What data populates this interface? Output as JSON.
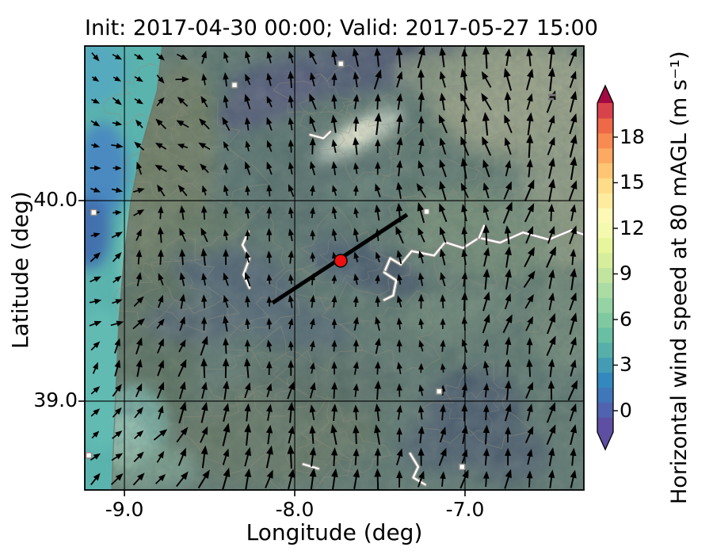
{
  "title": "Init: 2017-04-30 00:00; Valid: 2017-05-27 15:00",
  "axes": {
    "xlabel": "Longitude (deg)",
    "ylabel": "Latitude (deg)",
    "xticks": [
      {
        "value": -9.0,
        "label": "-9.0"
      },
      {
        "value": -8.0,
        "label": "-8.0"
      },
      {
        "value": -7.0,
        "label": "-7.0"
      }
    ],
    "yticks": [
      {
        "value": 40.0,
        "label": "40.0"
      },
      {
        "value": 39.0,
        "label": "39.0"
      }
    ],
    "xlim": [
      -9.233,
      -6.302
    ],
    "ylim": [
      38.557,
      40.771
    ],
    "grid": true
  },
  "colorbar": {
    "label": "Horizontal wind speed at 80 mAGL (m s⁻¹)",
    "ticks": [
      {
        "value": 0,
        "label": "0"
      },
      {
        "value": 3,
        "label": "3"
      },
      {
        "value": 6,
        "label": "6"
      },
      {
        "value": 9,
        "label": "9"
      },
      {
        "value": 12,
        "label": "12"
      },
      {
        "value": 15,
        "label": "15"
      },
      {
        "value": 18,
        "label": "18"
      }
    ],
    "segments": [
      "#5e4fa2",
      "#4f63ae",
      "#4077b8",
      "#3389bd",
      "#449cb4",
      "#57afa9",
      "#69bfa3",
      "#7fc9a0",
      "#95d3a4",
      "#abdca3",
      "#c1e59f",
      "#d6ee9b",
      "#e7f59c",
      "#f3faad",
      "#fdf8b6",
      "#feeb9e",
      "#fedc88",
      "#fdc574",
      "#fca962",
      "#f88b51",
      "#ee6947",
      "#d8434b"
    ],
    "over_color": "#a30a43",
    "under_color": "#5e4fa2"
  },
  "chart_data": {
    "type": "heatmap",
    "title": "Init: 2017-04-30 00:00; Valid: 2017-05-27 15:00",
    "xlabel": "Longitude (deg)",
    "ylabel": "Latitude (deg)",
    "colorbar_label": "Horizontal wind speed at 80 mAGL (m s⁻¹)",
    "colorbar_tick_values": [
      0,
      3,
      6,
      9,
      12,
      15,
      18
    ],
    "value_range_shown": [
      0,
      20
    ],
    "xlim": [
      -9.233,
      -6.302
    ],
    "ylim": [
      38.557,
      40.771
    ],
    "overlays": {
      "station_marker": {
        "lon": -7.73,
        "lat": 39.7,
        "color": "#ee1010"
      },
      "transect_line": {
        "from": {
          "lon": -8.13,
          "lat": 39.49
        },
        "to": {
          "lon": -7.34,
          "lat": 39.93
        },
        "color": "#000000"
      }
    },
    "wind_vectors": {
      "grid_nx": 23,
      "grid_ny": 20,
      "anchors": [
        [
          0.05,
          0.05,
          130,
          13
        ],
        [
          0.04,
          0.3,
          100,
          13
        ],
        [
          0.04,
          0.6,
          80,
          13
        ],
        [
          0.05,
          0.88,
          60,
          15
        ],
        [
          0.17,
          0.25,
          300,
          17
        ],
        [
          0.1,
          0.68,
          20,
          20
        ],
        [
          0.2,
          0.5,
          345,
          20
        ],
        [
          0.22,
          0.78,
          10,
          26
        ],
        [
          0.1,
          0.97,
          45,
          18
        ],
        [
          0.42,
          0.1,
          345,
          19
        ],
        [
          0.3,
          0.35,
          350,
          15
        ],
        [
          0.55,
          0.32,
          355,
          16
        ],
        [
          0.52,
          0.52,
          355,
          13
        ],
        [
          0.42,
          0.62,
          0,
          15
        ],
        [
          0.62,
          0.14,
          15,
          25
        ],
        [
          0.78,
          0.14,
          340,
          26
        ],
        [
          0.99,
          0.1,
          20,
          27
        ],
        [
          0.7,
          0.36,
          335,
          24
        ],
        [
          0.93,
          0.33,
          15,
          26
        ],
        [
          0.88,
          0.56,
          20,
          25
        ],
        [
          0.7,
          0.72,
          350,
          14
        ],
        [
          0.6,
          0.78,
          5,
          21
        ],
        [
          0.5,
          0.93,
          0,
          26
        ],
        [
          0.3,
          0.92,
          18,
          26
        ],
        [
          0.75,
          0.93,
          10,
          24
        ],
        [
          0.95,
          0.82,
          12,
          24
        ]
      ]
    },
    "base_color": "#547064",
    "field_patches": [
      [
        0.3,
        0.22,
        120,
        90,
        0,
        "#4e6b62",
        14,
        0.9
      ],
      [
        0.48,
        0.33,
        90,
        55,
        -15,
        "#49655e",
        12,
        0.85
      ],
      [
        0.17,
        0.3,
        55,
        150,
        8,
        "#6a7752",
        10,
        0.9
      ],
      [
        0.14,
        0.7,
        55,
        130,
        4,
        "#51684f",
        12,
        0.85
      ],
      [
        0.52,
        0.055,
        150,
        32,
        -8,
        "#41486a",
        10,
        0.9
      ],
      [
        0.37,
        0.12,
        70,
        28,
        -25,
        "#4a4c72",
        8,
        0.8
      ],
      [
        0.63,
        0.03,
        80,
        22,
        -5,
        "#3d4565",
        8,
        0.85
      ],
      [
        0.55,
        0.2,
        62,
        20,
        -28,
        "#cfdcc8",
        7,
        0.9
      ],
      [
        0.548,
        0.197,
        30,
        11,
        -28,
        "#f4f3d6",
        4,
        0.95
      ],
      [
        0.88,
        0.12,
        115,
        75,
        0,
        "#a2a782",
        14,
        0.95
      ],
      [
        0.97,
        0.33,
        62,
        100,
        0,
        "#96a07e",
        14,
        0.9
      ],
      [
        0.72,
        0.06,
        65,
        30,
        0,
        "#8e9b79",
        10,
        0.85
      ],
      [
        0.8,
        0.42,
        100,
        55,
        10,
        "#73906e",
        14,
        0.8
      ],
      [
        0.54,
        0.49,
        62,
        28,
        15,
        "#3b4f63",
        7,
        0.9
      ],
      [
        0.615,
        0.525,
        38,
        22,
        10,
        "#35475b",
        5,
        0.9
      ],
      [
        0.3,
        0.52,
        85,
        40,
        20,
        "#43566a",
        10,
        0.85
      ],
      [
        0.42,
        0.63,
        75,
        30,
        10,
        "#455a6b",
        9,
        0.8
      ],
      [
        0.22,
        0.62,
        62,
        28,
        0,
        "#47586a",
        9,
        0.8
      ],
      [
        0.78,
        0.82,
        62,
        52,
        0,
        "#38495e",
        10,
        0.9
      ],
      [
        0.85,
        0.92,
        50,
        35,
        0,
        "#3b4c61",
        9,
        0.85
      ],
      [
        0.72,
        0.9,
        55,
        35,
        0,
        "#3e4f63",
        9,
        0.8
      ],
      [
        0.38,
        0.87,
        125,
        65,
        -5,
        "#5d7055",
        14,
        0.85
      ],
      [
        0.75,
        0.6,
        75,
        28,
        -10,
        "#6b886f",
        10,
        0.7
      ],
      [
        0.55,
        0.33,
        50,
        22,
        -25,
        "#5d7d6d",
        8,
        0.7
      ],
      [
        0.085,
        0.89,
        26,
        34,
        0,
        "#ecefc1",
        4,
        0.95
      ],
      [
        0.095,
        0.855,
        45,
        52,
        0,
        "#7cc2b2",
        7,
        0.8
      ],
      [
        0.13,
        0.95,
        60,
        30,
        0,
        "#7fae92",
        9,
        0.7
      ],
      [
        0.96,
        0.62,
        45,
        60,
        0,
        "#6f8a6e",
        10,
        0.7
      ],
      [
        0.48,
        0.75,
        90,
        40,
        5,
        "#4c6257",
        10,
        0.7
      ],
      [
        0.24,
        0.42,
        55,
        30,
        -20,
        "#5b7257",
        8,
        0.7
      ]
    ],
    "ocean_color": "#5bb3ae",
    "ocean_patches": [
      [
        0.02,
        0.06,
        40,
        40,
        "#55a9c0"
      ],
      [
        0.035,
        0.28,
        32,
        60,
        "#4a86c2"
      ],
      [
        0.01,
        0.42,
        26,
        46,
        "#3f6aae"
      ],
      [
        0.03,
        0.75,
        40,
        90,
        "#63bcb4"
      ],
      [
        0.1,
        0.52,
        15,
        90,
        "#8ed0bd"
      ]
    ],
    "coastline": [
      [
        0.155,
        0
      ],
      [
        0.145,
        0.1
      ],
      [
        0.115,
        0.22
      ],
      [
        0.092,
        0.35
      ],
      [
        0.078,
        0.48
      ],
      [
        0.068,
        0.62
      ],
      [
        0.062,
        0.78
      ],
      [
        0.054,
        1.0
      ]
    ],
    "contour_seeds": [
      [
        0.52,
        0.49,
        60
      ],
      [
        0.3,
        0.52,
        75
      ],
      [
        0.55,
        0.2,
        55
      ],
      [
        0.88,
        0.13,
        80
      ],
      [
        0.75,
        0.42,
        70
      ],
      [
        0.42,
        0.63,
        65
      ],
      [
        0.78,
        0.82,
        55
      ],
      [
        0.38,
        0.87,
        85
      ],
      [
        0.22,
        0.25,
        70
      ],
      [
        0.63,
        0.65,
        50
      ],
      [
        0.48,
        0.12,
        45
      ],
      [
        0.92,
        0.55,
        55
      ],
      [
        0.18,
        0.55,
        60
      ],
      [
        0.68,
        0.28,
        48
      ],
      [
        0.35,
        0.75,
        55
      ],
      [
        0.85,
        0.3,
        45
      ],
      [
        0.5,
        0.9,
        50
      ],
      [
        0.12,
        0.12,
        40
      ]
    ],
    "rivers": [
      [
        [
          0.6,
          0.51
        ],
        [
          0.612,
          0.478
        ],
        [
          0.633,
          0.492
        ],
        [
          0.655,
          0.462
        ],
        [
          0.7,
          0.472
        ],
        [
          0.722,
          0.442
        ],
        [
          0.758,
          0.455
        ],
        [
          0.79,
          0.432
        ],
        [
          0.832,
          0.443
        ],
        [
          0.878,
          0.42
        ],
        [
          0.93,
          0.436
        ],
        [
          0.975,
          0.415
        ],
        [
          1.0,
          0.425
        ]
      ],
      [
        [
          0.6,
          0.51
        ],
        [
          0.624,
          0.528
        ],
        [
          0.618,
          0.562
        ],
        [
          0.6,
          0.572
        ]
      ],
      [
        [
          0.79,
          0.432
        ],
        [
          0.8,
          0.405
        ]
      ],
      [
        [
          0.328,
          0.418
        ],
        [
          0.316,
          0.448
        ],
        [
          0.33,
          0.478
        ],
        [
          0.318,
          0.515
        ],
        [
          0.33,
          0.545
        ]
      ],
      [
        [
          0.652,
          0.918
        ],
        [
          0.668,
          0.948
        ],
        [
          0.658,
          0.972
        ],
        [
          0.682,
          0.988
        ]
      ],
      [
        [
          0.438,
          0.942
        ],
        [
          0.468,
          0.952
        ]
      ],
      [
        [
          0.452,
          0.2
        ],
        [
          0.478,
          0.208
        ],
        [
          0.492,
          0.193
        ]
      ]
    ],
    "towns": [
      [
        0.685,
        0.373
      ],
      [
        0.71,
        0.778
      ],
      [
        0.756,
        0.948
      ],
      [
        0.008,
        0.922
      ],
      [
        0.3,
        0.088
      ],
      [
        0.513,
        0.04
      ],
      [
        0.018,
        0.375
      ]
    ],
    "gray_markers": [
      [
        0.935,
        0.115
      ]
    ]
  }
}
